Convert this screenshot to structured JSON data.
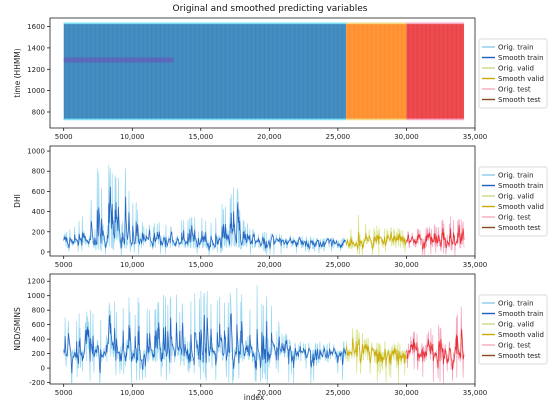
{
  "chart_data": {
    "type": "line",
    "title": "Original and smoothed predicting variables",
    "xlabel": "index",
    "xlim": [
      4000,
      35000
    ],
    "xticks": [
      5000,
      10000,
      15000,
      20000,
      25000,
      30000,
      35000
    ],
    "xtick_labels": [
      "5000",
      "10,000",
      "15,000",
      "20,000",
      "25,000",
      "30,000",
      "35,000"
    ],
    "segments": {
      "train": [
        5000,
        25600
      ],
      "valid": [
        25600,
        30000
      ],
      "test": [
        30000,
        34200
      ]
    },
    "legend": [
      "Orig. train",
      "Smooth train",
      "Orig. valid",
      "Smooth valid",
      "Orig. test",
      "Smooth test"
    ],
    "legend_colors": {
      "orig_train": "#8ecae6",
      "smooth_train": "#1f5fbf",
      "orig_valid": "#c8d986",
      "smooth_valid": "#c9a800",
      "orig_test": "#f4a7b9",
      "smooth_test": "#8b4a1c"
    },
    "legend_location": "right",
    "panels": [
      {
        "ylabel": "time (HHMM)",
        "ylim": [
          650,
          1680
        ],
        "yticks": [
          800,
          1000,
          1200,
          1400,
          1600
        ],
        "pattern": "daily_cycle",
        "range": [
          730,
          1630
        ],
        "segment_colors": {
          "train": "#1f77b4",
          "valid": "#ff7f0e",
          "test": "#e8282b"
        }
      },
      {
        "ylabel": "DHI",
        "ylim": [
          -40,
          1050
        ],
        "yticks": [
          0,
          200,
          400,
          600,
          800,
          1000
        ],
        "pattern": "spiky",
        "segment_colors": {
          "train": "#1f5fbf",
          "valid": "#c9a800",
          "test": "#e8282b"
        },
        "envelope": [
          [
            5000,
            180
          ],
          [
            6000,
            300
          ],
          [
            7000,
            700
          ],
          [
            7500,
            850
          ],
          [
            8500,
            950
          ],
          [
            9500,
            900
          ],
          [
            10000,
            650
          ],
          [
            11000,
            250
          ],
          [
            12000,
            320
          ],
          [
            13000,
            250
          ],
          [
            14000,
            400
          ],
          [
            15000,
            450
          ],
          [
            16000,
            350
          ],
          [
            17000,
            600
          ],
          [
            17500,
            800
          ],
          [
            18000,
            350
          ],
          [
            19000,
            220
          ],
          [
            21000,
            180
          ],
          [
            23000,
            150
          ],
          [
            25500,
            140
          ],
          [
            26300,
            420
          ],
          [
            27000,
            280
          ],
          [
            28500,
            260
          ],
          [
            30000,
            230
          ],
          [
            31500,
            250
          ],
          [
            32500,
            320
          ],
          [
            33500,
            380
          ],
          [
            34200,
            300
          ]
        ]
      },
      {
        "ylabel": "NDD/SMINS",
        "ylim": [
          -220,
          1300
        ],
        "yticks": [
          -200,
          0,
          200,
          400,
          600,
          800,
          1000,
          1200
        ],
        "pattern": "spiky",
        "segment_colors": {
          "train": "#1f5fbf",
          "valid": "#c9a800",
          "test": "#e8282b"
        },
        "envelope": [
          [
            5000,
            700
          ],
          [
            6000,
            750
          ],
          [
            7000,
            850
          ],
          [
            8000,
            1000
          ],
          [
            9000,
            950
          ],
          [
            10000,
            1050
          ],
          [
            12000,
            1000
          ],
          [
            14000,
            1100
          ],
          [
            16000,
            1100
          ],
          [
            18000,
            1150
          ],
          [
            19500,
            1200
          ],
          [
            20500,
            700
          ],
          [
            21500,
            400
          ],
          [
            23000,
            360
          ],
          [
            25500,
            380
          ],
          [
            26300,
            700
          ],
          [
            27000,
            420
          ],
          [
            28500,
            380
          ],
          [
            30000,
            350
          ],
          [
            31000,
            650
          ],
          [
            32000,
            600
          ],
          [
            33000,
            800
          ],
          [
            34000,
            900
          ]
        ]
      }
    ]
  }
}
